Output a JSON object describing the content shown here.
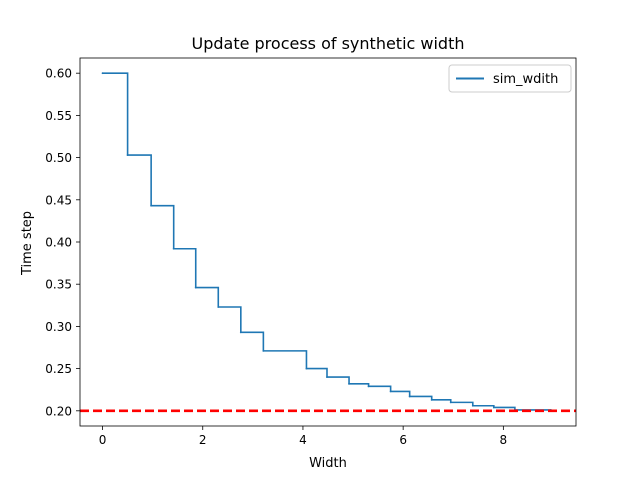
{
  "chart_data": {
    "type": "line",
    "title": "Update process of synthetic width",
    "xlabel": "Width",
    "ylabel": "Time step",
    "xlim": [
      -0.45,
      9.45
    ],
    "ylim": [
      0.182,
      0.618
    ],
    "xticks": [
      0,
      2,
      4,
      6,
      8
    ],
    "yticks": [
      0.2,
      0.25,
      0.3,
      0.35,
      0.4,
      0.45,
      0.5,
      0.55,
      0.6
    ],
    "xtick_labels": [
      "0",
      "2",
      "4",
      "6",
      "8"
    ],
    "ytick_labels": [
      "0.20",
      "0.25",
      "0.30",
      "0.35",
      "0.40",
      "0.45",
      "0.50",
      "0.55",
      "0.60"
    ],
    "legend_position": "top-right",
    "grid": false,
    "series": [
      {
        "name": "sim_wdith",
        "color": "#1f77b4",
        "style": "steps",
        "x": [
          0.0,
          0.5,
          0.97,
          1.42,
          1.86,
          2.31,
          2.76,
          3.21,
          4.07,
          4.48,
          4.92,
          5.31,
          5.75,
          6.13,
          6.57,
          6.95,
          7.39,
          7.81,
          8.23,
          8.95
        ],
        "y": [
          0.6,
          0.503,
          0.443,
          0.392,
          0.346,
          0.323,
          0.293,
          0.271,
          0.25,
          0.24,
          0.232,
          0.229,
          0.223,
          0.217,
          0.213,
          0.21,
          0.206,
          0.204,
          0.201,
          0.201
        ]
      }
    ],
    "reference_line": {
      "y": 0.2,
      "color": "#ff0000",
      "style": "dashed"
    }
  }
}
